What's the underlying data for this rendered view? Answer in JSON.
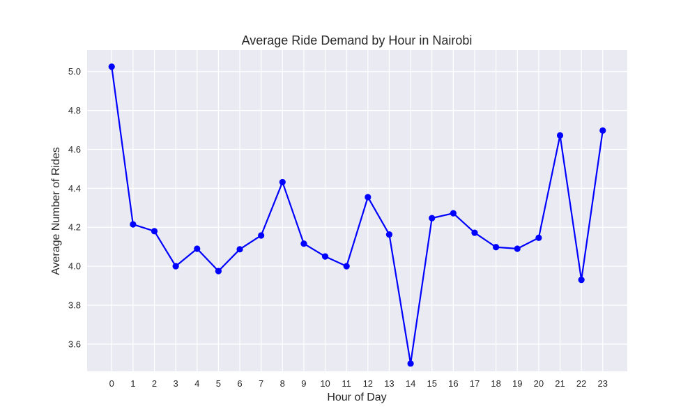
{
  "chart_data": {
    "type": "line",
    "title": "Average Ride Demand by Hour in Nairobi",
    "xlabel": "Hour of Day",
    "ylabel": "Average Number of Rides",
    "x": [
      0,
      1,
      2,
      3,
      4,
      5,
      6,
      7,
      8,
      9,
      10,
      11,
      12,
      13,
      14,
      15,
      16,
      17,
      18,
      19,
      20,
      21,
      22,
      23
    ],
    "x_tick_labels": [
      "0",
      "1",
      "2",
      "3",
      "4",
      "5",
      "6",
      "7",
      "8",
      "9",
      "10",
      "11",
      "12",
      "13",
      "14",
      "15",
      "16",
      "17",
      "18",
      "19",
      "20",
      "21",
      "22",
      "23"
    ],
    "xlim": [
      -1.15,
      24.15
    ],
    "ylim": [
      3.46,
      5.11
    ],
    "y_ticks": [
      3.6,
      3.8,
      4.0,
      4.2,
      4.4,
      4.6,
      4.8,
      5.0
    ],
    "y_tick_labels": [
      "3.6",
      "3.8",
      "4.0",
      "4.2",
      "4.4",
      "4.6",
      "4.8",
      "5.0"
    ],
    "grid": true,
    "series": [
      {
        "values": [
          5.025,
          4.215,
          4.18,
          4.0,
          4.09,
          3.975,
          4.087,
          4.158,
          4.432,
          4.116,
          4.05,
          4.0,
          4.355,
          4.163,
          3.5,
          4.247,
          4.272,
          4.172,
          4.098,
          4.09,
          4.146,
          4.672,
          3.93,
          4.697
        ],
        "color": "#0000ff"
      }
    ],
    "colors": {
      "plot_background": "#eaeaf2",
      "grid": "#ffffff",
      "line": "#0000ff"
    }
  }
}
